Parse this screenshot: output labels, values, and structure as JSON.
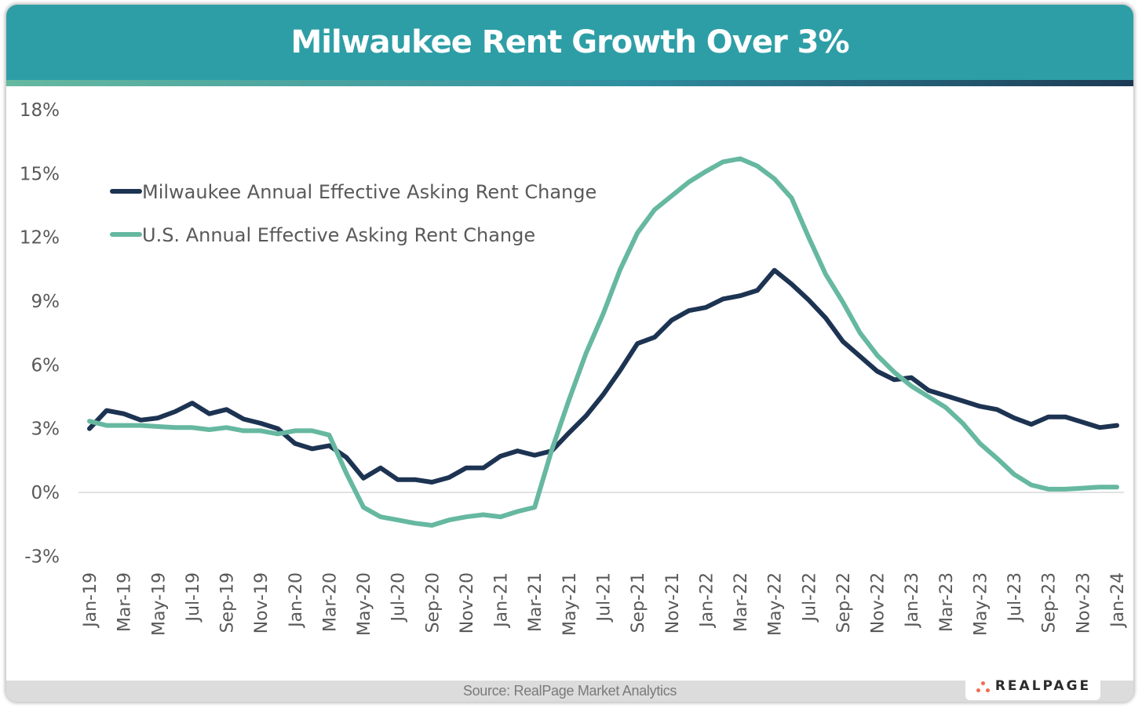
{
  "header": {
    "title": "Milwaukee Rent Growth Over 3%"
  },
  "footer": {
    "source": "Source: RealPage Market Analytics",
    "logo_text": "REALPAGE"
  },
  "colors": {
    "title_bg": "#2e9ea6",
    "milwaukee": "#1d3352",
    "us": "#66b8a0",
    "logo_dots": "#f26b4e"
  },
  "chart_data": {
    "type": "line",
    "title": "Milwaukee Rent Growth Over 3%",
    "xlabel": "",
    "ylabel": "",
    "ylim": [
      -3,
      18
    ],
    "yticks": [
      -3,
      0,
      3,
      6,
      9,
      12,
      15,
      18
    ],
    "ytick_labels": [
      "-3%",
      "0%",
      "3%",
      "6%",
      "9%",
      "12%",
      "15%",
      "18%"
    ],
    "grid": false,
    "zero_line": true,
    "legend_position": "top-left",
    "x": [
      "Jan-19",
      "Feb-19",
      "Mar-19",
      "Apr-19",
      "May-19",
      "Jun-19",
      "Jul-19",
      "Aug-19",
      "Sep-19",
      "Oct-19",
      "Nov-19",
      "Dec-19",
      "Jan-20",
      "Feb-20",
      "Mar-20",
      "Apr-20",
      "May-20",
      "Jun-20",
      "Jul-20",
      "Aug-20",
      "Sep-20",
      "Oct-20",
      "Nov-20",
      "Dec-20",
      "Jan-21",
      "Feb-21",
      "Mar-21",
      "Apr-21",
      "May-21",
      "Jun-21",
      "Jul-21",
      "Aug-21",
      "Sep-21",
      "Oct-21",
      "Nov-21",
      "Dec-21",
      "Jan-22",
      "Feb-22",
      "Mar-22",
      "Apr-22",
      "May-22",
      "Jun-22",
      "Jul-22",
      "Aug-22",
      "Sep-22",
      "Oct-22",
      "Nov-22",
      "Dec-22",
      "Jan-23",
      "Feb-23",
      "Mar-23",
      "Apr-23",
      "May-23",
      "Jun-23",
      "Jul-23",
      "Aug-23",
      "Sep-23",
      "Oct-23",
      "Nov-23",
      "Dec-23",
      "Jan-24"
    ],
    "xtick_labels": [
      "Jan-19",
      "Mar-19",
      "May-19",
      "Jul-19",
      "Sep-19",
      "Nov-19",
      "Jan-20",
      "Mar-20",
      "May-20",
      "Jul-20",
      "Sep-20",
      "Nov-20",
      "Jan-21",
      "Mar-21",
      "May-21",
      "Jul-21",
      "Sep-21",
      "Nov-21",
      "Jan-22",
      "Mar-22",
      "May-22",
      "Jul-22",
      "Sep-22",
      "Nov-22",
      "Jan-23",
      "Mar-23",
      "May-23",
      "Jul-23",
      "Sep-23",
      "Nov-23",
      "Jan-24"
    ],
    "series": [
      {
        "name": "Milwaukee Annual Effective Asking Rent Change",
        "color": "#1d3352",
        "values": [
          3.0,
          3.85,
          3.7,
          3.4,
          3.5,
          3.8,
          4.2,
          3.7,
          3.9,
          3.45,
          3.25,
          3.0,
          2.3,
          2.05,
          2.2,
          1.65,
          0.67,
          1.15,
          0.6,
          0.6,
          0.48,
          0.7,
          1.15,
          1.15,
          1.7,
          1.95,
          1.75,
          1.95,
          2.8,
          3.6,
          4.6,
          5.75,
          7.0,
          7.3,
          8.1,
          8.55,
          8.7,
          9.1,
          9.25,
          9.5,
          10.45,
          9.8,
          9.05,
          8.2,
          7.1,
          6.4,
          5.7,
          5.3,
          5.4,
          4.8,
          4.55,
          4.3,
          4.05,
          3.9,
          3.5,
          3.2,
          3.55,
          3.55,
          3.3,
          3.05,
          3.15
        ]
      },
      {
        "name": "U.S. Annual Effective Asking Rent Change",
        "color": "#66b8a0",
        "values": [
          3.35,
          3.15,
          3.15,
          3.15,
          3.1,
          3.05,
          3.05,
          2.95,
          3.05,
          2.9,
          2.9,
          2.75,
          2.9,
          2.9,
          2.7,
          0.9,
          -0.7,
          -1.15,
          -1.3,
          -1.45,
          -1.55,
          -1.3,
          -1.15,
          -1.05,
          -1.15,
          -0.9,
          -0.7,
          2.0,
          4.35,
          6.55,
          8.4,
          10.5,
          12.2,
          13.3,
          13.95,
          14.6,
          15.1,
          15.55,
          15.7,
          15.35,
          14.75,
          13.85,
          12.0,
          10.25,
          8.95,
          7.5,
          6.45,
          5.65,
          5.0,
          4.5,
          4.0,
          3.25,
          2.3,
          1.6,
          0.85,
          0.35,
          0.15,
          0.15,
          0.2,
          0.25,
          0.25
        ]
      }
    ]
  }
}
